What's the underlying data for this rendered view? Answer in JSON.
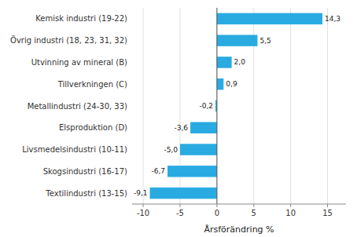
{
  "chart_data": {
    "type": "bar",
    "orientation": "horizontal",
    "categories": [
      "Textilindustri (13-15)",
      "Skogsindustri (16-17)",
      "Livsmedelsindustri (10-11)",
      "Elsproduktion (D)",
      "Metallindustri (24-30, 33)",
      "Tillverkningen (C)",
      "Utvinning av mineral (B)",
      "Övrig industri (18, 23, 31, 32)",
      "Kemisk industri (19-22)"
    ],
    "values": [
      -9.1,
      -6.7,
      -5.0,
      -3.6,
      -0.2,
      0.9,
      2.0,
      5.5,
      14.3
    ],
    "value_labels": [
      "-9,1",
      "-6,7",
      "-5,0",
      "-3,6",
      "-0,2",
      "0,9",
      "2,0",
      "5,5",
      "14,3"
    ],
    "color": "#29abe2",
    "xlabel": "Årsförändring %",
    "xlim": [
      -11.5,
      17.5
    ],
    "xticks": [
      -10,
      -5,
      0,
      5,
      10,
      15
    ],
    "grid": true,
    "data_labels": true
  }
}
